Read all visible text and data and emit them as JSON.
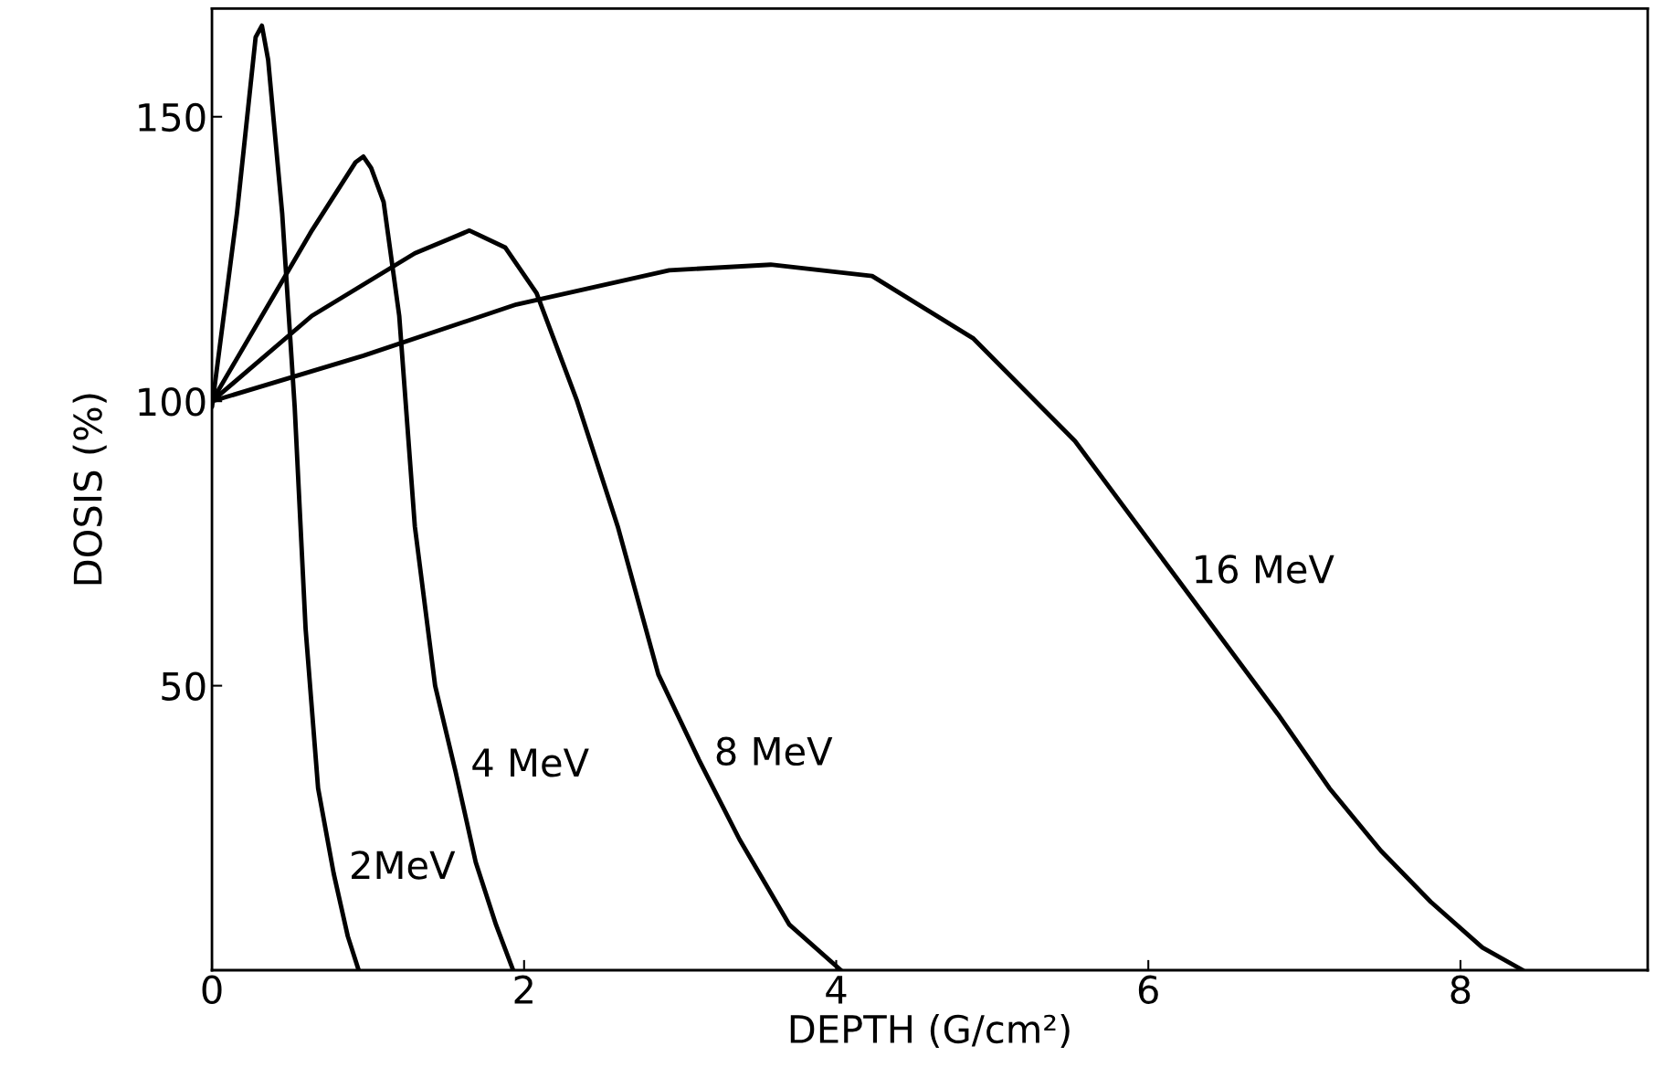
{
  "chart_data": {
    "type": "line",
    "xlabel": "DEPTH (G/cm²)",
    "ylabel": "DOSIS (%)",
    "xlim": [
      0,
      9.2
    ],
    "ylim": [
      0,
      169
    ],
    "xticks": [
      0,
      2,
      4,
      6,
      8
    ],
    "yticks": [
      50,
      100,
      150
    ],
    "grid": false,
    "legend": false,
    "marker": "none",
    "line_style": "solid",
    "series": [
      {
        "name": "2MeV",
        "color": "#000000",
        "x": [
          0,
          0.16,
          0.28,
          0.32,
          0.36,
          0.45,
          0.53,
          0.6,
          0.68,
          0.78,
          0.87,
          0.94
        ],
        "values": [
          99,
          133,
          164,
          166,
          160,
          133,
          99,
          60,
          32,
          17,
          6,
          0
        ]
      },
      {
        "name": "4 MeV",
        "color": "#000000",
        "x": [
          0,
          0.32,
          0.64,
          0.92,
          0.97,
          1.02,
          1.1,
          1.2,
          1.3,
          1.43,
          1.56,
          1.69,
          1.82,
          1.93
        ],
        "values": [
          100,
          115,
          130,
          142,
          143,
          141,
          135,
          115,
          78,
          50,
          35,
          19,
          8,
          0
        ]
      },
      {
        "name": "8 MeV",
        "color": "#000000",
        "x": [
          0,
          0.64,
          1.3,
          1.65,
          1.88,
          2.08,
          2.34,
          2.6,
          2.86,
          3.12,
          3.38,
          3.7,
          4.03
        ],
        "values": [
          100,
          115,
          126,
          130,
          127,
          119,
          100,
          78,
          52,
          37,
          23,
          8,
          0
        ]
      },
      {
        "name": "16 MeV",
        "color": "#000000",
        "x": [
          0,
          0.97,
          1.95,
          2.93,
          3.58,
          4.23,
          4.88,
          5.53,
          6.18,
          6.83,
          7.16,
          7.49,
          7.81,
          8.14,
          8.4
        ],
        "values": [
          100,
          108,
          117,
          123,
          124,
          122,
          111,
          93,
          69,
          45,
          32,
          21,
          12,
          4,
          0
        ]
      }
    ]
  }
}
